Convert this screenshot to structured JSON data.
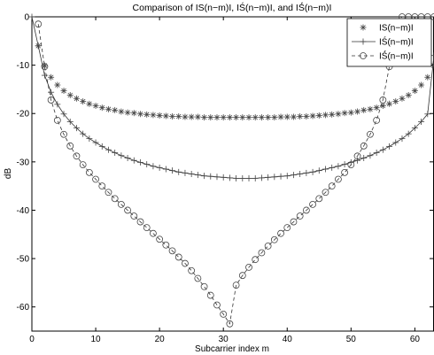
{
  "chart_data": {
    "type": "scatter",
    "title": "Comparison of IS(n−m)I, IŚ(n−m)I, and IŚ́(n−m)I",
    "xlabel": "Subcarrier index m",
    "ylabel": "dB",
    "xlim": [
      0,
      63
    ],
    "ylim": [
      -65,
      0
    ],
    "xticks": [
      0,
      10,
      20,
      30,
      40,
      50,
      60
    ],
    "yticks": [
      0,
      -10,
      -20,
      -30,
      -40,
      -50,
      -60
    ],
    "grid": false,
    "legend_position": "top-right",
    "series": [
      {
        "name": "IS(n−m)I",
        "marker": "star",
        "line": "none",
        "x": [
          1,
          2,
          3,
          4,
          5,
          6,
          7,
          8,
          9,
          10,
          11,
          12,
          13,
          14,
          15,
          16,
          17,
          18,
          19,
          20,
          21,
          22,
          23,
          24,
          25,
          26,
          27,
          28,
          29,
          30,
          31,
          32,
          33,
          34,
          35,
          36,
          37,
          38,
          39,
          40,
          41,
          42,
          43,
          44,
          45,
          46,
          47,
          48,
          49,
          50,
          51,
          52,
          53,
          54,
          55,
          56,
          57,
          58,
          59,
          60,
          61,
          62,
          63
        ],
        "y": [
          -6.0,
          -10.1,
          -12.5,
          -14.1,
          -15.3,
          -16.2,
          -16.9,
          -17.5,
          -18.0,
          -18.4,
          -18.8,
          -19.1,
          -19.3,
          -19.6,
          -19.8,
          -19.9,
          -20.1,
          -20.2,
          -20.3,
          -20.4,
          -20.5,
          -20.6,
          -20.6,
          -20.7,
          -20.7,
          -20.7,
          -20.8,
          -20.8,
          -20.8,
          -20.8,
          -20.8,
          -20.8,
          -20.8,
          -20.8,
          -20.8,
          -20.8,
          -20.8,
          -20.8,
          -20.7,
          -20.7,
          -20.7,
          -20.6,
          -20.6,
          -20.5,
          -20.4,
          -20.3,
          -20.2,
          -20.1,
          -19.9,
          -19.8,
          -19.6,
          -19.3,
          -19.1,
          -18.8,
          -18.4,
          -18.0,
          -17.5,
          -16.9,
          -16.2,
          -15.3,
          -14.1,
          -12.5,
          -10.1
        ]
      },
      {
        "name": "IŚ(n−m)I",
        "marker": "plus",
        "line": "solid",
        "x": [
          0,
          1,
          2,
          3,
          4,
          5,
          6,
          7,
          8,
          9,
          10,
          11,
          12,
          13,
          14,
          15,
          16,
          17,
          18,
          19,
          20,
          21,
          22,
          23,
          24,
          25,
          26,
          27,
          28,
          29,
          30,
          31,
          32,
          33,
          34,
          35,
          36,
          37,
          38,
          39,
          40,
          41,
          42,
          43,
          44,
          45,
          46,
          47,
          48,
          49,
          50,
          51,
          52,
          53,
          54,
          55,
          56,
          57,
          58,
          59,
          60,
          61,
          62,
          63
        ],
        "y": [
          0,
          -6.0,
          -12.1,
          -15.6,
          -18.1,
          -20.1,
          -21.7,
          -23.0,
          -24.2,
          -25.2,
          -26.0,
          -26.8,
          -27.5,
          -28.1,
          -28.7,
          -29.2,
          -29.7,
          -30.1,
          -30.5,
          -30.9,
          -31.2,
          -31.5,
          -31.8,
          -32.1,
          -32.3,
          -32.5,
          -32.7,
          -32.9,
          -33.0,
          -33.1,
          -33.2,
          -33.3,
          -33.4,
          -33.4,
          -33.4,
          -33.4,
          -33.3,
          -33.2,
          -33.1,
          -33.0,
          -32.9,
          -32.7,
          -32.5,
          -32.3,
          -32.1,
          -31.8,
          -31.5,
          -31.2,
          -30.9,
          -30.5,
          -30.1,
          -29.7,
          -29.2,
          -28.7,
          -28.1,
          -27.5,
          -26.8,
          -26.0,
          -25.2,
          -24.2,
          -23.0,
          -21.7,
          -20.1,
          -8.0
        ]
      },
      {
        "name": "IŚ́(n−m)I",
        "marker": "circle",
        "line": "dashed",
        "x": [
          1,
          2,
          3,
          4,
          5,
          6,
          7,
          8,
          9,
          10,
          11,
          12,
          13,
          14,
          15,
          16,
          17,
          18,
          19,
          20,
          21,
          22,
          23,
          24,
          25,
          26,
          27,
          28,
          29,
          30,
          31,
          32,
          33,
          34,
          35,
          36,
          37,
          38,
          39,
          40,
          41,
          42,
          43,
          44,
          45,
          46,
          47,
          48,
          49,
          50,
          51,
          52,
          53,
          54,
          55,
          56,
          57,
          58,
          59,
          60,
          61,
          62,
          63
        ],
        "y": [
          -1.5,
          -10.3,
          -17.2,
          -21.4,
          -24.3,
          -26.7,
          -28.8,
          -30.6,
          -32.2,
          -33.6,
          -35.0,
          -36.3,
          -37.6,
          -38.8,
          -40.0,
          -41.2,
          -42.4,
          -43.6,
          -44.8,
          -46.0,
          -47.2,
          -48.4,
          -49.7,
          -51.0,
          -52.5,
          -54.1,
          -55.8,
          -57.6,
          -59.6,
          -61.5,
          -63.5,
          -55.5,
          -53.5,
          -51.8,
          -50.2,
          -48.8,
          -47.4,
          -46.1,
          -44.8,
          -43.6,
          -42.4,
          -41.2,
          -40.0,
          -38.8,
          -37.6,
          -36.3,
          -35.0,
          -33.6,
          -32.2,
          -30.6,
          -28.8,
          -26.7,
          -24.3,
          -21.4,
          -17.2,
          -10.3,
          -1.5,
          0,
          0,
          0,
          0,
          0,
          0
        ]
      }
    ]
  }
}
